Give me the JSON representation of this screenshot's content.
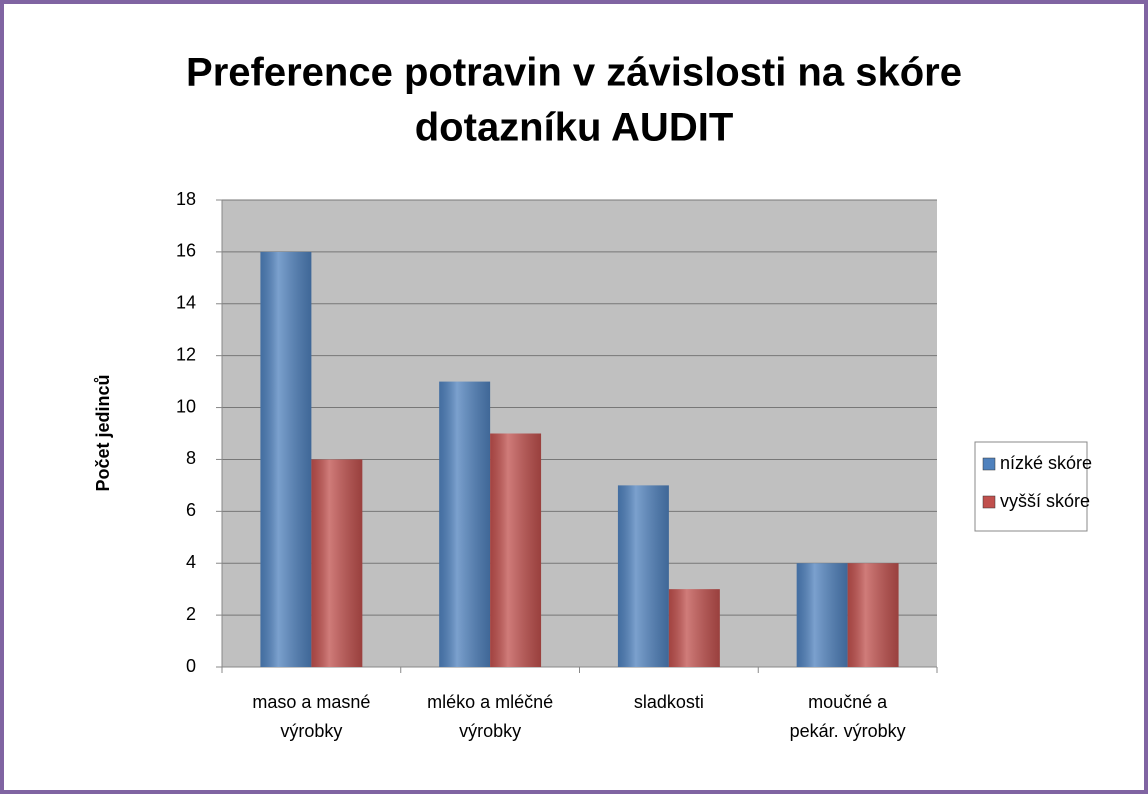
{
  "chart_data": {
    "type": "bar",
    "title": [
      "Preference potravin v závislosti na skóre",
      "dotazníku AUDIT"
    ],
    "y_label": "Počet jedinců",
    "categories": [
      [
        "maso a masné",
        "výrobky"
      ],
      [
        "mléko a mléčné",
        "výrobky"
      ],
      [
        "sladkosti"
      ],
      [
        "moučné a",
        "pekár. výrobky"
      ]
    ],
    "series": [
      {
        "name": "nízké skóre",
        "color": "#4f81bd",
        "values": [
          16,
          11,
          7,
          4
        ]
      },
      {
        "name": "vyšší skóre",
        "color": "#c0504d",
        "values": [
          8,
          9,
          3,
          4
        ]
      }
    ],
    "ylim": [
      0,
      18
    ],
    "yticks": [
      0,
      2,
      4,
      6,
      8,
      10,
      12,
      14,
      16,
      18
    ],
    "grid": true,
    "legend": "right"
  }
}
